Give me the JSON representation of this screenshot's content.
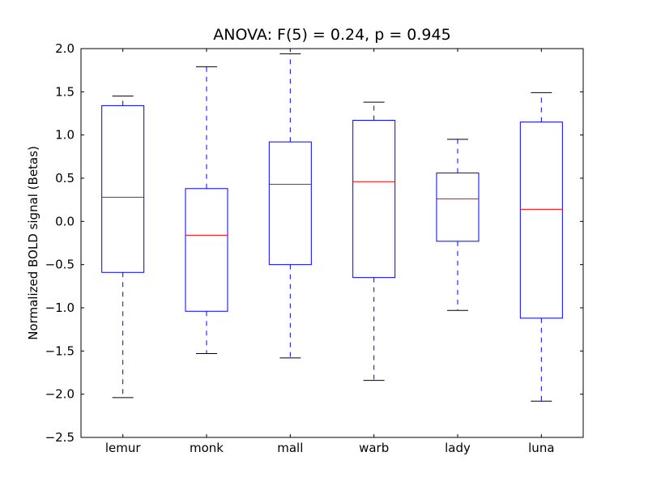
{
  "chart_data": {
    "type": "box",
    "title": "ANOVA: F(5) = 0.24, p = 0.945",
    "xlabel": "",
    "ylabel": "Normalized BOLD signal (Betas)",
    "ylim": [
      -2.5,
      2.0
    ],
    "yticks": [
      "2.0",
      "1.5",
      "1.0",
      "0.5",
      "0.0",
      "−0.5",
      "−1.0",
      "−1.5",
      "−2.0",
      "−2.5"
    ],
    "ytick_values": [
      2.0,
      1.5,
      1.0,
      0.5,
      0.0,
      -0.5,
      -1.0,
      -1.5,
      -2.0,
      -2.5
    ],
    "grid": false,
    "categories": [
      "lemur",
      "monk",
      "mall",
      "warb",
      "lady",
      "luna"
    ],
    "boxes": [
      {
        "whisker_low": -2.04,
        "q1": -0.59,
        "median": 0.28,
        "q3": 1.34,
        "whisker_high": 1.45
      },
      {
        "whisker_low": -1.53,
        "q1": -1.04,
        "median": -0.16,
        "q3": 0.38,
        "whisker_high": 1.79
      },
      {
        "whisker_low": -1.58,
        "q1": -0.5,
        "median": 0.43,
        "q3": 0.92,
        "whisker_high": 1.94
      },
      {
        "whisker_low": -1.84,
        "q1": -0.65,
        "median": 0.46,
        "q3": 1.17,
        "whisker_high": 1.38
      },
      {
        "whisker_low": -1.03,
        "q1": -0.23,
        "median": 0.26,
        "q3": 0.56,
        "whisker_high": 0.95
      },
      {
        "whisker_low": -2.08,
        "q1": -1.12,
        "median": 0.14,
        "q3": 1.15,
        "whisker_high": 1.49
      }
    ],
    "colors": {
      "box": "#0000ff",
      "median": "#ff0000",
      "cap": "#000000"
    }
  }
}
